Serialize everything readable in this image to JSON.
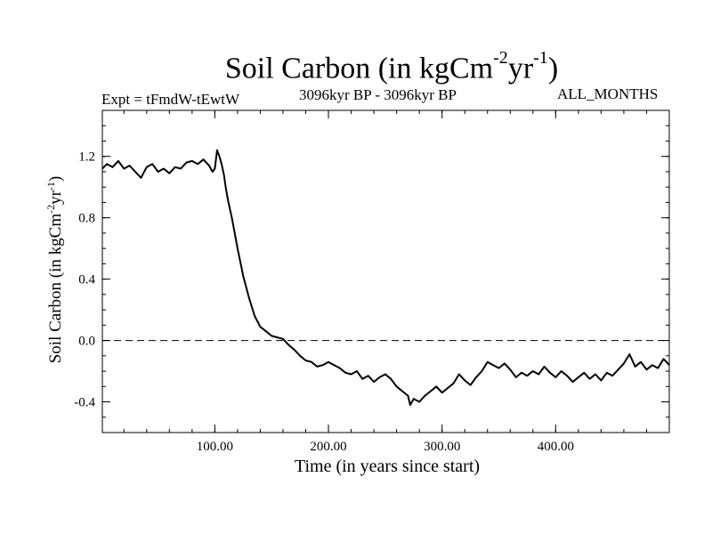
{
  "header": {
    "title_main": "Soil Carbon (in kgCm",
    "title_exp1": "-2",
    "title_mid": "yr",
    "title_exp2": "-1",
    "title_end": ")",
    "experiment": "Expt = tFmdW-tEwtW",
    "period": "3096kyr BP - 3096kyr BP",
    "months": "ALL_MONTHS"
  },
  "chart_data": {
    "type": "line",
    "title": "Soil Carbon (in kgCm-2yr-1)",
    "xlabel": "Time (in years since start)",
    "ylabel": "Soil Carbon (in kgCm-2yr-1)",
    "ylabel_parts": {
      "a": "Soil Carbon (in kgCm",
      "b": "-2",
      "c": "yr",
      "d": "-1",
      "e": ")"
    },
    "xlim": [
      1,
      500
    ],
    "ylim": [
      -0.6,
      1.5
    ],
    "xticks": [
      100,
      200,
      300,
      400
    ],
    "xtick_labels": [
      "100.00",
      "200.00",
      "300.00",
      "400.00"
    ],
    "yticks": [
      -0.4,
      0.0,
      0.4,
      0.8,
      1.2
    ],
    "ytick_labels": [
      "-0.4",
      "0.0",
      "0.4",
      "0.8",
      "1.2"
    ],
    "reference_line": {
      "y": 0.0,
      "style": "dashed"
    },
    "series": [
      {
        "name": "tFmdW-tEwtW",
        "x": [
          1,
          5,
          10,
          15,
          20,
          25,
          30,
          35,
          40,
          45,
          50,
          55,
          60,
          65,
          70,
          75,
          80,
          85,
          90,
          95,
          98,
          100,
          102,
          104,
          106,
          108,
          110,
          112,
          115,
          118,
          120,
          125,
          130,
          135,
          140,
          145,
          150,
          155,
          160,
          165,
          170,
          175,
          180,
          185,
          190,
          195,
          200,
          205,
          210,
          215,
          220,
          225,
          230,
          235,
          240,
          245,
          250,
          255,
          260,
          265,
          270,
          272,
          275,
          280,
          285,
          290,
          295,
          300,
          305,
          310,
          315,
          320,
          325,
          330,
          335,
          340,
          345,
          350,
          355,
          360,
          365,
          370,
          375,
          380,
          385,
          390,
          395,
          400,
          405,
          410,
          415,
          420,
          425,
          430,
          435,
          440,
          445,
          450,
          455,
          460,
          465,
          470,
          475,
          480,
          485,
          490,
          495,
          500
        ],
        "values": [
          1.12,
          1.15,
          1.13,
          1.17,
          1.12,
          1.14,
          1.1,
          1.06,
          1.13,
          1.15,
          1.1,
          1.12,
          1.09,
          1.13,
          1.12,
          1.16,
          1.17,
          1.15,
          1.18,
          1.14,
          1.1,
          1.12,
          1.24,
          1.2,
          1.15,
          1.08,
          0.98,
          0.9,
          0.8,
          0.68,
          0.6,
          0.42,
          0.28,
          0.16,
          0.09,
          0.06,
          0.03,
          0.02,
          0.01,
          -0.03,
          -0.06,
          -0.1,
          -0.13,
          -0.14,
          -0.17,
          -0.16,
          -0.14,
          -0.16,
          -0.18,
          -0.21,
          -0.22,
          -0.2,
          -0.25,
          -0.23,
          -0.27,
          -0.24,
          -0.22,
          -0.25,
          -0.3,
          -0.33,
          -0.36,
          -0.42,
          -0.38,
          -0.4,
          -0.36,
          -0.33,
          -0.3,
          -0.34,
          -0.31,
          -0.28,
          -0.22,
          -0.26,
          -0.29,
          -0.24,
          -0.2,
          -0.14,
          -0.16,
          -0.18,
          -0.15,
          -0.19,
          -0.24,
          -0.21,
          -0.23,
          -0.2,
          -0.22,
          -0.17,
          -0.21,
          -0.24,
          -0.2,
          -0.23,
          -0.27,
          -0.24,
          -0.21,
          -0.25,
          -0.22,
          -0.26,
          -0.21,
          -0.23,
          -0.19,
          -0.15,
          -0.09,
          -0.17,
          -0.14,
          -0.19,
          -0.16,
          -0.18,
          -0.12,
          -0.16
        ]
      }
    ]
  }
}
